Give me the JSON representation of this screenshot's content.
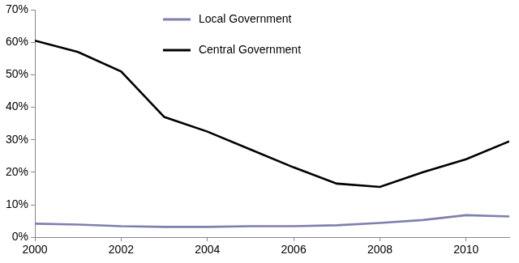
{
  "chart_data": {
    "type": "line",
    "x": [
      2000,
      2001,
      2002,
      2003,
      2004,
      2005,
      2006,
      2007,
      2008,
      2009,
      2010,
      2011
    ],
    "series": [
      {
        "name": "Local Government",
        "color": "#7f7fae",
        "values": [
          4.2,
          3.9,
          3.4,
          3.2,
          3.2,
          3.4,
          3.4,
          3.7,
          4.4,
          5.3,
          6.8,
          6.4
        ]
      },
      {
        "name": "Central Government",
        "color": "#000000",
        "values": [
          60.5,
          57,
          51,
          37,
          32.5,
          27,
          21.5,
          16.5,
          15.5,
          20,
          24,
          29.5
        ]
      }
    ],
    "xlim": [
      2000,
      2011
    ],
    "xticks": [
      2000,
      2002,
      2004,
      2006,
      2008,
      2010
    ],
    "ylim": [
      0,
      70
    ],
    "yticks": [
      {
        "value": 0,
        "label": "0%"
      },
      {
        "value": 10,
        "label": "10%"
      },
      {
        "value": 20,
        "label": "20%"
      },
      {
        "value": 30,
        "label": "30%"
      },
      {
        "value": 40,
        "label": "40%"
      },
      {
        "value": 50,
        "label": "50%"
      },
      {
        "value": 60,
        "label": "60%"
      },
      {
        "value": 70,
        "label": "70%"
      }
    ],
    "grid": false,
    "legend": "top"
  }
}
